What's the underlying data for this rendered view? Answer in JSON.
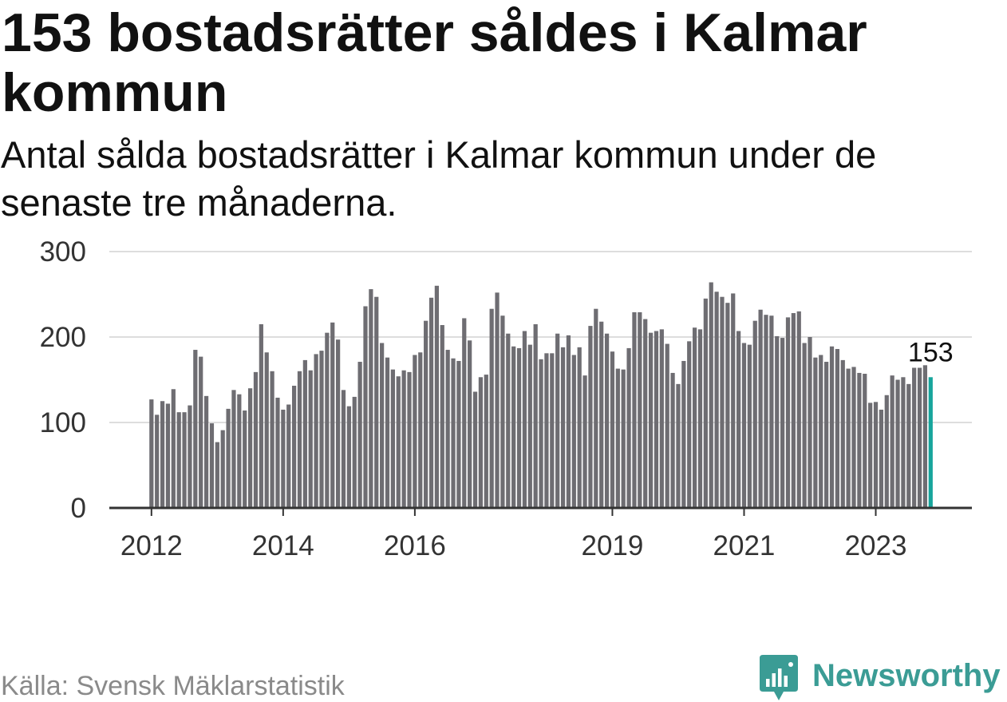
{
  "chart_data": {
    "type": "bar",
    "title": "153 bostadsrätter såldes i Kalmar kommun",
    "subtitle": "Antal sålda bostadsrätter i Kalmar kommun under de senaste tre månaderna.",
    "x_start": 2012,
    "x_step_months": 1,
    "values": [
      127,
      109,
      125,
      122,
      139,
      112,
      112,
      120,
      185,
      177,
      131,
      99,
      77,
      91,
      116,
      138,
      133,
      114,
      140,
      159,
      215,
      182,
      160,
      129,
      115,
      121,
      143,
      160,
      173,
      161,
      180,
      184,
      205,
      217,
      197,
      138,
      119,
      130,
      171,
      236,
      256,
      247,
      193,
      176,
      162,
      154,
      161,
      159,
      179,
      182,
      219,
      246,
      260,
      214,
      185,
      175,
      172,
      222,
      196,
      136,
      153,
      156,
      233,
      252,
      225,
      204,
      189,
      187,
      207,
      191,
      215,
      174,
      181,
      181,
      204,
      188,
      202,
      179,
      188,
      155,
      213,
      233,
      218,
      204,
      183,
      163,
      162,
      187,
      229,
      229,
      221,
      205,
      207,
      209,
      192,
      158,
      145,
      172,
      195,
      211,
      209,
      245,
      264,
      253,
      247,
      240,
      251,
      207,
      193,
      191,
      219,
      232,
      226,
      225,
      201,
      199,
      223,
      228,
      230,
      193,
      200,
      176,
      179,
      171,
      189,
      186,
      173,
      163,
      165,
      158,
      157,
      123,
      124,
      115,
      132,
      155,
      150,
      153,
      145,
      164,
      164,
      167,
      153
    ],
    "xlim": [
      2011.36,
      2024.46
    ],
    "ylim": [
      0,
      300
    ],
    "x_ticks": [
      2012,
      2014,
      2016,
      2019,
      2021,
      2023
    ],
    "y_ticks": [
      0,
      100,
      200,
      300
    ],
    "grid": true,
    "highlight_index": 142,
    "annotations": [
      {
        "index": 142,
        "text": "153"
      }
    ],
    "colors": {
      "bar": "#6e6d72",
      "highlight": "#17a59c",
      "grid": "#dddddd",
      "axis": "#333333"
    }
  },
  "footer": {
    "source": "Källa: Svensk Mäklarstatistik"
  },
  "brand": {
    "name": "Newsworthy",
    "icon": "newsworthy-logo-icon",
    "color": "#3b9c95"
  }
}
